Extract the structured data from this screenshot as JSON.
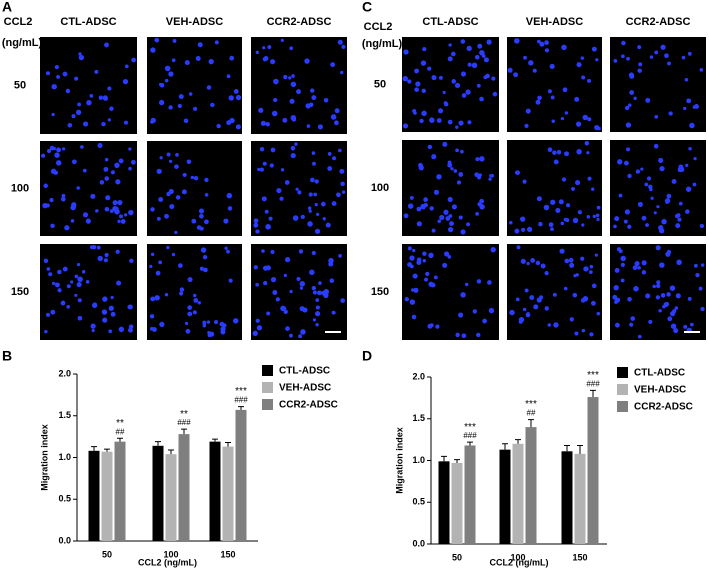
{
  "image_panels": [
    {
      "label": "A",
      "row_header": [
        "CCL2",
        "(ng/mL)"
      ],
      "columns": [
        "CTL-ADSC",
        "VEH-ADSC",
        "CCR2-ADSC"
      ],
      "rows": [
        "50",
        "100",
        "150"
      ]
    },
    {
      "label": "C",
      "row_header": [
        "CCL2",
        "(ng/mL)"
      ],
      "columns": [
        "CTL-ADSC",
        "VEH-ADSC",
        "CCR2-ADSC"
      ],
      "rows": [
        "50",
        "100",
        "150"
      ]
    }
  ],
  "chart_data": [
    {
      "type": "bar",
      "panel_label": "B",
      "xlabel": "CCL2 (ng/mL)",
      "ylabel": "Migration index",
      "categories": [
        "50",
        "100",
        "150"
      ],
      "ylim": [
        0,
        2
      ],
      "yticks": [
        {
          "value": 0,
          "label": "0.0"
        },
        {
          "value": 0.5,
          "label": "0.5"
        },
        {
          "value": 1,
          "label": "1.0"
        },
        {
          "value": 1.5,
          "label": "1.5"
        },
        {
          "value": 2,
          "label": "2.0"
        }
      ],
      "legend": "right",
      "series": [
        {
          "name": "CTL-ADSC",
          "color": "#000000",
          "values": [
            1.08,
            1.14,
            1.19
          ],
          "errors": [
            0.05,
            0.05,
            0.03
          ]
        },
        {
          "name": "VEH-ADSC",
          "color": "#b3b3b3",
          "values": [
            1.07,
            1.04,
            1.13
          ],
          "errors": [
            0.03,
            0.05,
            0.05
          ]
        },
        {
          "name": "CCR2-ADSC",
          "color": "#7f7f7f",
          "values": [
            1.19,
            1.28,
            1.57
          ],
          "errors": [
            0.04,
            0.06,
            0.04
          ],
          "annotations": [
            [
              "**",
              "##"
            ],
            [
              "**",
              "###"
            ],
            [
              "***",
              "###"
            ]
          ]
        }
      ]
    },
    {
      "type": "bar",
      "panel_label": "D",
      "xlabel": "CCL2 (ng/mL)",
      "ylabel": "Migration index",
      "categories": [
        "50",
        "100",
        "150"
      ],
      "ylim": [
        0,
        2
      ],
      "yticks": [
        {
          "value": 0,
          "label": "0.0"
        },
        {
          "value": 0.5,
          "label": "0.5"
        },
        {
          "value": 1,
          "label": "1.0"
        },
        {
          "value": 1.5,
          "label": "1.5"
        },
        {
          "value": 2,
          "label": "2.0"
        }
      ],
      "legend": "right",
      "series": [
        {
          "name": "CTL-ADSC",
          "color": "#000000",
          "values": [
            0.99,
            1.13,
            1.11
          ],
          "errors": [
            0.06,
            0.07,
            0.07
          ]
        },
        {
          "name": "VEH-ADSC",
          "color": "#b3b3b3",
          "values": [
            0.97,
            1.2,
            1.08
          ],
          "errors": [
            0.04,
            0.05,
            0.1
          ]
        },
        {
          "name": "CCR2-ADSC",
          "color": "#7f7f7f",
          "values": [
            1.18,
            1.4,
            1.76
          ],
          "errors": [
            0.04,
            0.09,
            0.08
          ],
          "annotations": [
            [
              "***",
              "###"
            ],
            [
              "***",
              "##"
            ],
            [
              "***",
              "###"
            ]
          ]
        }
      ]
    }
  ]
}
